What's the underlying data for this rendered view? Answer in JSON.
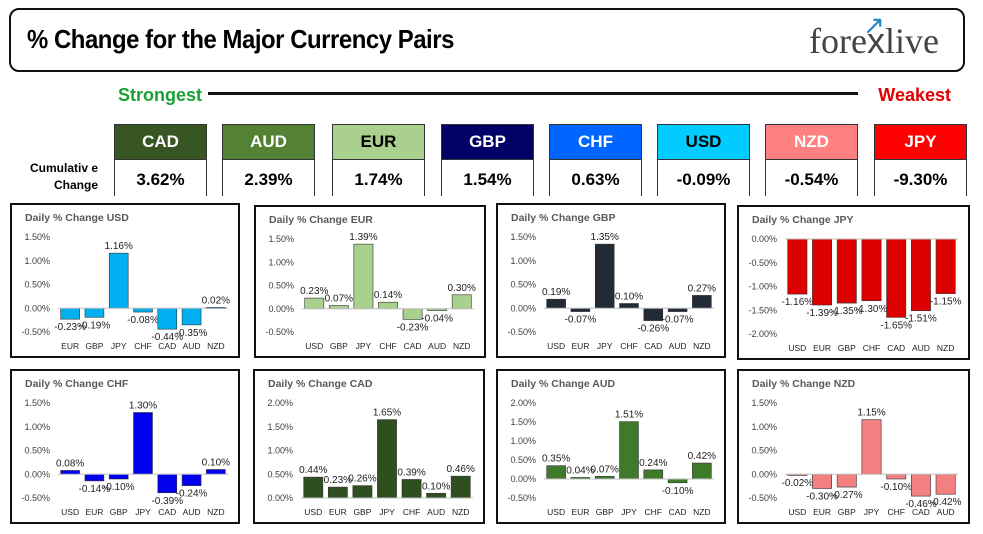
{
  "header": {
    "title": "% Change for the Major Currency Pairs",
    "logo": "forexlive",
    "logo_left": "fore",
    "logo_x": "x",
    "logo_right": "live"
  },
  "scale": {
    "strongest_label": "Strongest",
    "weakest_label": "Weakest"
  },
  "cumulative_label_line1": "Cumulativ e",
  "cumulative_label_line2": "Change",
  "currencies": [
    {
      "code": "CAD",
      "value": "3.62%",
      "color": "#375623"
    },
    {
      "code": "AUD",
      "value": "2.39%",
      "color": "#548235"
    },
    {
      "code": "EUR",
      "value": "1.74%",
      "color": "#a9d08e",
      "text_color": "#000000"
    },
    {
      "code": "GBP",
      "value": "1.54%",
      "color": "#000066"
    },
    {
      "code": "CHF",
      "value": "0.63%",
      "color": "#0066ff"
    },
    {
      "code": "USD",
      "value": "-0.09%",
      "color": "#00ccff",
      "text_color": "#000000"
    },
    {
      "code": "NZD",
      "value": "-0.54%",
      "color": "#ff8080"
    },
    {
      "code": "JPY",
      "value": "-9.30%",
      "color": "#ff0000"
    }
  ],
  "chart_data": [
    {
      "type": "bar",
      "title": "Daily % Change USD",
      "color": "#00b0f0",
      "categories": [
        "EUR",
        "GBP",
        "JPY",
        "CHF",
        "CAD",
        "AUD",
        "NZD"
      ],
      "values": [
        -0.23,
        -0.19,
        1.16,
        -0.08,
        -0.44,
        -0.35,
        0.02
      ],
      "labels": [
        "-0.23%",
        "-0.19%",
        "1.16%",
        "-0.08%",
        "-0.44%",
        "-0.35%",
        "0.02%"
      ],
      "ticks": [
        "1.50%",
        "1.00%",
        "0.50%",
        "0.00%",
        "-0.50%"
      ],
      "tick_values": [
        1.5,
        1.0,
        0.5,
        0.0,
        -0.5
      ],
      "ylim": [
        -0.5,
        1.5
      ]
    },
    {
      "type": "bar",
      "title": "Daily % Change EUR",
      "color": "#a9d08e",
      "categories": [
        "USD",
        "GBP",
        "JPY",
        "CHF",
        "CAD",
        "AUD",
        "NZD"
      ],
      "values": [
        0.23,
        0.07,
        1.39,
        0.14,
        -0.23,
        -0.04,
        0.3
      ],
      "labels": [
        "0.23%",
        "0.07%",
        "1.39%",
        "0.14%",
        "-0.23%",
        "-0.04%",
        "0.30%"
      ],
      "ticks": [
        "1.50%",
        "1.00%",
        "0.50%",
        "0.00%",
        "-0.50%"
      ],
      "tick_values": [
        1.5,
        1.0,
        0.5,
        0.0,
        -0.5
      ],
      "ylim": [
        -0.5,
        1.5
      ]
    },
    {
      "type": "bar",
      "title": "Daily % Change GBP",
      "color": "#222b35",
      "categories": [
        "USD",
        "EUR",
        "JPY",
        "CHF",
        "CAD",
        "AUD",
        "NZD"
      ],
      "values": [
        0.19,
        -0.07,
        1.35,
        0.1,
        -0.26,
        -0.07,
        0.27
      ],
      "labels": [
        "0.19%",
        "-0.07%",
        "1.35%",
        "0.10%",
        "-0.26%",
        "-0.07%",
        "0.27%"
      ],
      "ticks": [
        "1.50%",
        "1.00%",
        "0.50%",
        "0.00%",
        "-0.50%"
      ],
      "tick_values": [
        1.5,
        1.0,
        0.5,
        0.0,
        -0.5
      ],
      "ylim": [
        -0.5,
        1.5
      ]
    },
    {
      "type": "bar",
      "title": "Daily % Change JPY",
      "color": "#dd0000",
      "categories": [
        "USD",
        "EUR",
        "GBP",
        "CHF",
        "CAD",
        "AUD",
        "NZD"
      ],
      "values": [
        -1.16,
        -1.39,
        -1.35,
        -1.3,
        -1.65,
        -1.51,
        -1.15
      ],
      "labels": [
        "-1.16%",
        "-1.39%",
        "-1.35%",
        "-1.30%",
        "-1.65%",
        "-1.51%",
        "-1.15%"
      ],
      "ticks": [
        "0.00%",
        "-0.50%",
        "-1.00%",
        "-1.50%",
        "-2.00%"
      ],
      "tick_values": [
        0.0,
        -0.5,
        -1.0,
        -1.5,
        -2.0
      ],
      "ylim": [
        -2.0,
        0.0
      ]
    },
    {
      "type": "bar",
      "title": "Daily % Change CHF",
      "color": "#0000ee",
      "categories": [
        "USD",
        "EUR",
        "GBP",
        "JPY",
        "CAD",
        "AUD",
        "NZD"
      ],
      "values": [
        0.08,
        -0.14,
        -0.1,
        1.3,
        -0.39,
        -0.24,
        0.1
      ],
      "labels": [
        "0.08%",
        "-0.14%",
        "-0.10%",
        "1.30%",
        "-0.39%",
        "-0.24%",
        "0.10%"
      ],
      "ticks": [
        "1.50%",
        "1.00%",
        "0.50%",
        "0.00%",
        "-0.50%"
      ],
      "tick_values": [
        1.5,
        1.0,
        0.5,
        0.0,
        -0.5
      ],
      "ylim": [
        -0.5,
        1.5
      ]
    },
    {
      "type": "bar",
      "title": "Daily % Change CAD",
      "color": "#2f4f1f",
      "categories": [
        "USD",
        "EUR",
        "GBP",
        "JPY",
        "CHF",
        "AUD",
        "NZD"
      ],
      "values": [
        0.44,
        0.23,
        0.26,
        1.65,
        0.39,
        0.1,
        0.46
      ],
      "labels": [
        "0.44%",
        "0.23%",
        "0.26%",
        "1.65%",
        "0.39%",
        "0.10%",
        "0.46%"
      ],
      "ticks": [
        "2.00%",
        "1.50%",
        "1.00%",
        "0.50%",
        "0.00%"
      ],
      "tick_values": [
        2.0,
        1.5,
        1.0,
        0.5,
        0.0
      ],
      "ylim": [
        0.0,
        2.0
      ]
    },
    {
      "type": "bar",
      "title": "Daily % Change AUD",
      "color": "#3f7a2a",
      "categories": [
        "USD",
        "EUR",
        "GBP",
        "JPY",
        "CHF",
        "CAD",
        "NZD"
      ],
      "values": [
        0.35,
        0.04,
        0.07,
        1.51,
        0.24,
        -0.1,
        0.42
      ],
      "labels": [
        "0.35%",
        "0.04%",
        "0.07%",
        "1.51%",
        "0.24%",
        "-0.10%",
        "0.42%"
      ],
      "ticks": [
        "2.00%",
        "1.50%",
        "1.00%",
        "0.50%",
        "0.00%",
        "-0.50%"
      ],
      "tick_values": [
        2.0,
        1.5,
        1.0,
        0.5,
        0.0,
        -0.5
      ],
      "ylim": [
        -0.5,
        2.0
      ]
    },
    {
      "type": "bar",
      "title": "Daily % Change NZD",
      "color": "#f28080",
      "categories": [
        "USD",
        "EUR",
        "GBP",
        "JPY",
        "CHF",
        "CAD",
        "AUD"
      ],
      "values": [
        -0.02,
        -0.3,
        -0.27,
        1.15,
        -0.1,
        -0.46,
        -0.42
      ],
      "labels": [
        "-0.02%",
        "-0.30%",
        "-0.27%",
        "1.15%",
        "-0.10%",
        "-0.46%",
        "-0.42%"
      ],
      "ticks": [
        "1.50%",
        "1.00%",
        "0.50%",
        "0.00%",
        "-0.50%"
      ],
      "tick_values": [
        1.5,
        1.0,
        0.5,
        0.0,
        -0.5
      ],
      "ylim": [
        -0.5,
        1.5
      ]
    }
  ]
}
